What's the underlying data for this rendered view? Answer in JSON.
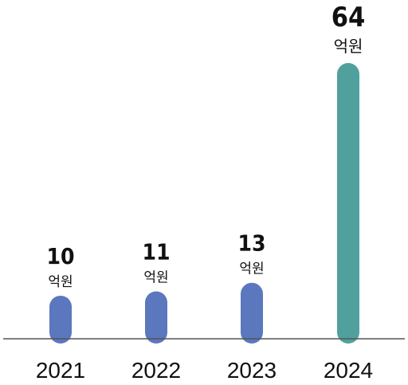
{
  "chart_data": {
    "type": "bar",
    "title": "",
    "xlabel": "",
    "ylabel": "",
    "categories": [
      "2021",
      "2022",
      "2023",
      "2024"
    ],
    "values": [
      10,
      11,
      13,
      64
    ],
    "value_labels": [
      "10",
      "11",
      "13",
      "64"
    ],
    "unit": "억원",
    "ylim": [
      0,
      64
    ],
    "grid": false,
    "colors": {
      "default": "#5b77bd",
      "highlight": "#50a19e",
      "axis": "#555555",
      "text": "#111111"
    },
    "highlight_index": 3
  }
}
